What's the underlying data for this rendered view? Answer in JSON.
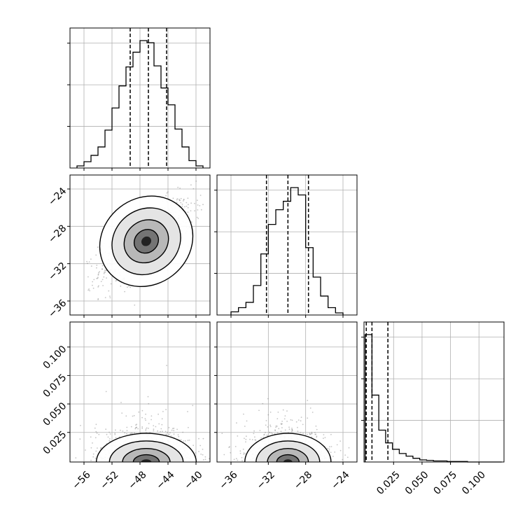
{
  "chart_data": {
    "type": "corner",
    "grid": true,
    "colors": {
      "hist": "#000000",
      "scatter": "#7f7f7f",
      "grid": "#b0b0b0",
      "density_dark": "#000000",
      "density_light": "#f2f2f2"
    },
    "parameters": [
      {
        "range": [
          -58,
          -38
        ],
        "ticks": [
          -56,
          -52,
          -48,
          -44,
          -40
        ],
        "tick_labels": [
          "−56",
          "−52",
          "−48",
          "−44",
          "−40"
        ],
        "quantiles": [
          -49.4,
          -46.8,
          -44.2
        ],
        "hist_bin_edges": [
          -57,
          -56,
          -55,
          -54,
          -53,
          -52,
          -51,
          -50,
          -49,
          -48,
          -47,
          -46,
          -45,
          -44,
          -43,
          -42,
          -41,
          -40,
          -39
        ],
        "hist_counts": [
          2,
          6,
          12,
          20,
          36,
          57,
          78,
          96,
          110,
          121,
          119,
          97,
          76,
          60,
          37,
          20,
          7,
          2
        ]
      },
      {
        "range": [
          -37.5,
          -22.5
        ],
        "ticks": [
          -36,
          -32,
          -28,
          -24
        ],
        "tick_labels": [
          "−36",
          "−32",
          "−28",
          "−24"
        ],
        "quantiles": [
          -32.2,
          -29.9,
          -27.7
        ],
        "hist_bin_edges": [
          -36,
          -35.2,
          -34.4,
          -33.6,
          -32.8,
          -32,
          -31.2,
          -30.4,
          -29.6,
          -28.8,
          -28,
          -27.2,
          -26.4,
          -25.6,
          -24.8,
          -24
        ],
        "hist_counts": [
          3,
          7,
          12,
          28,
          58,
          86,
          100,
          108,
          121,
          114,
          64,
          36,
          18,
          7,
          2
        ]
      },
      {
        "range": [
          -0.001,
          0.122
        ],
        "ticks": [
          0.025,
          0.05,
          0.075,
          0.1
        ],
        "tick_labels": [
          "0.025",
          "0.050",
          "0.075",
          "0.100"
        ],
        "quantiles": [
          0.001,
          0.006,
          0.02
        ],
        "hist_bin_edges": [
          0,
          0.006,
          0.012,
          0.018,
          0.024,
          0.03,
          0.036,
          0.042,
          0.048,
          0.054,
          0.06,
          0.066,
          0.072,
          0.078,
          0.084,
          0.09,
          0.096,
          0.102,
          0.108,
          0.114,
          0.12
        ],
        "hist_counts": [
          240,
          126,
          60,
          36,
          24,
          16,
          11,
          7,
          4,
          3,
          2,
          2,
          1,
          1,
          1,
          0,
          0,
          0,
          0,
          0
        ]
      }
    ],
    "pairs": [
      {
        "x_param": 0,
        "y_param": 1,
        "center": [
          -47.1,
          -29.6
        ],
        "sigma": [
          3.3,
          2.2
        ],
        "correlation": 0.7
      },
      {
        "x_param": 0,
        "y_param": 2,
        "center": [
          -47.1,
          0.004
        ],
        "sigma": [
          3.4,
          0.011
        ],
        "correlation": 0.0
      },
      {
        "x_param": 1,
        "y_param": 2,
        "center": [
          -29.9,
          0.004
        ],
        "sigma": [
          2.2,
          0.011
        ],
        "correlation": 0.0
      }
    ]
  }
}
